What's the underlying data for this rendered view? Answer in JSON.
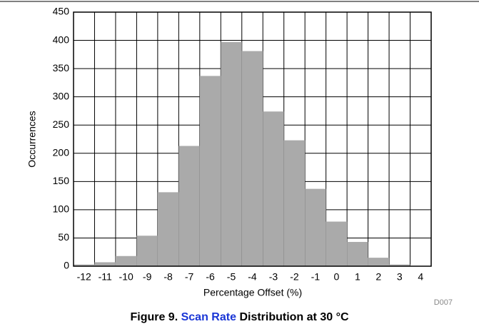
{
  "chart_data": {
    "type": "histogram",
    "xlabel": "Percentage Offset (%)",
    "ylabel": "Occurrences",
    "bins": [
      -12.5,
      -11.5,
      -10.5,
      -9.5,
      -8.5,
      -7.5,
      -6.5,
      -5.5,
      -4.5,
      -3.5,
      -2.5,
      -1.5,
      -0.5,
      0.5,
      1.5,
      2.5,
      3.5
    ],
    "values": [
      3,
      7,
      18,
      54,
      131,
      213,
      337,
      397,
      381,
      274,
      223,
      137,
      79,
      43,
      15,
      3
    ],
    "color": "#aaaaaa",
    "xlim": [
      -12.5,
      4.5
    ],
    "xticks": [
      -12,
      -11,
      -10,
      -9,
      -8,
      -7,
      -6,
      -5,
      -4,
      -3,
      -2,
      -1,
      0,
      1,
      2,
      3,
      4
    ],
    "ylim": [
      0,
      450
    ],
    "yticks": [
      0,
      50,
      100,
      150,
      200,
      250,
      300,
      350,
      400,
      450
    ],
    "grid": true,
    "figure_id": "D007",
    "caption": {
      "prefix": "Figure 9.",
      "link": "Scan Rate",
      "suffix": "Distribution at 30 °C"
    }
  }
}
